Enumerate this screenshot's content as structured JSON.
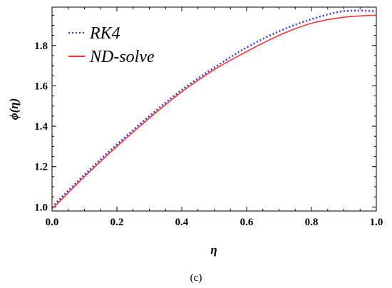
{
  "chart_data": {
    "type": "line",
    "title": "",
    "xlabel": "η",
    "ylabel": "ϕ(η)",
    "xlim": [
      0.0,
      1.0
    ],
    "ylim": [
      0.98,
      1.99
    ],
    "x_ticks": [
      0.0,
      0.2,
      0.4,
      0.6,
      0.8,
      1.0
    ],
    "x_tick_labels": [
      "0.0",
      "0.2",
      "0.4",
      "0.6",
      "0.8",
      "1.0"
    ],
    "y_ticks": [
      1.0,
      1.2,
      1.4,
      1.6,
      1.8
    ],
    "y_tick_labels": [
      "1.0",
      "1.2",
      "1.4",
      "1.6",
      "1.8"
    ],
    "grid": false,
    "legend_position": "top-left",
    "series": [
      {
        "name": "RK4",
        "style": "dotted",
        "color": "#3333ee",
        "x": [
          0.0,
          0.1,
          0.2,
          0.3,
          0.4,
          0.5,
          0.6,
          0.7,
          0.8,
          0.9,
          1.0
        ],
        "y": [
          1.0,
          1.16,
          1.31,
          1.45,
          1.58,
          1.69,
          1.79,
          1.87,
          1.93,
          1.97,
          1.97
        ]
      },
      {
        "name": "ND-solve",
        "style": "solid",
        "color": "#ff3333",
        "x": [
          0.0,
          0.1,
          0.2,
          0.3,
          0.4,
          0.5,
          0.6,
          0.7,
          0.8,
          0.9,
          1.0
        ],
        "y": [
          0.99,
          1.15,
          1.3,
          1.44,
          1.57,
          1.68,
          1.77,
          1.85,
          1.91,
          1.94,
          1.95
        ]
      }
    ]
  },
  "caption": "(c)"
}
